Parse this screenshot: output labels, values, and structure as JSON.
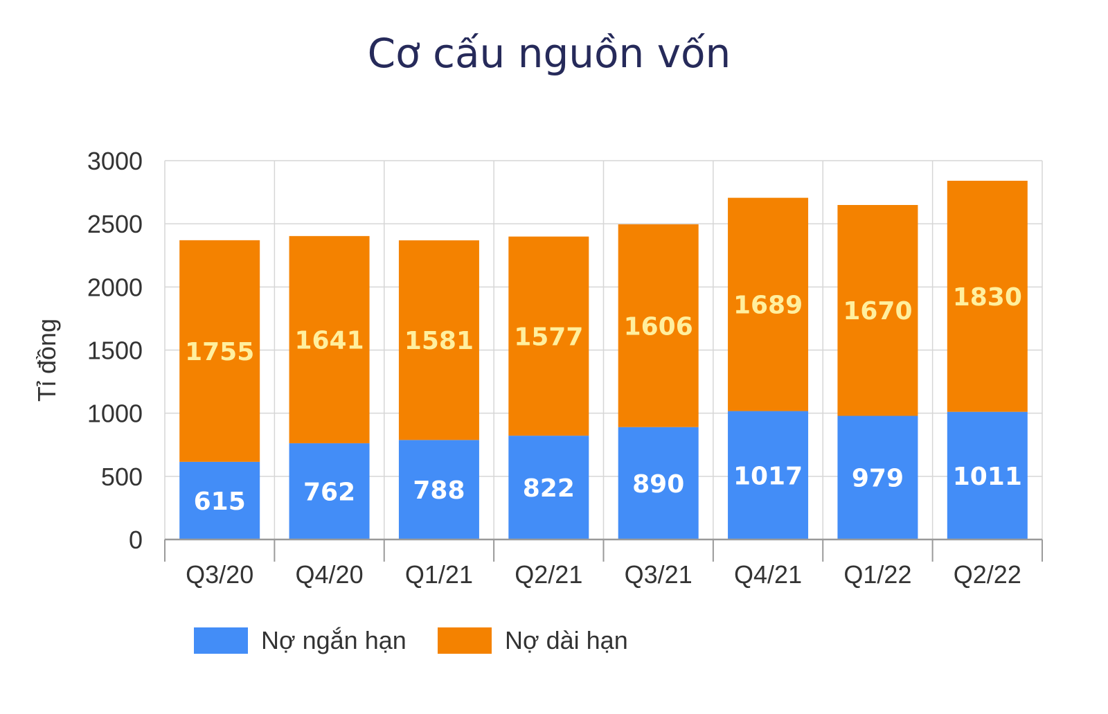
{
  "chart_data": {
    "type": "bar",
    "stacked": true,
    "title": "Cơ cấu nguồn vốn",
    "ylabel": "Tỉ đồng",
    "xlabel": "",
    "ylim": [
      0,
      3000
    ],
    "yticks": [
      0,
      500,
      1000,
      1500,
      2000,
      2500,
      3000
    ],
    "grid": true,
    "legend_position": "bottom-left",
    "categories": [
      "Q3/20",
      "Q4/20",
      "Q1/21",
      "Q2/21",
      "Q3/21",
      "Q4/21",
      "Q1/22",
      "Q2/22"
    ],
    "series": [
      {
        "name": "Nợ ngắn hạn",
        "color": "#438df7",
        "label_color": "#ffffff",
        "values": [
          615,
          762,
          788,
          822,
          890,
          1017,
          979,
          1011
        ]
      },
      {
        "name": "Nợ dài hạn",
        "color": "#f48200",
        "label_color": "#ffef9e",
        "values": [
          1755,
          1641,
          1581,
          1577,
          1606,
          1689,
          1670,
          1830
        ]
      }
    ]
  }
}
